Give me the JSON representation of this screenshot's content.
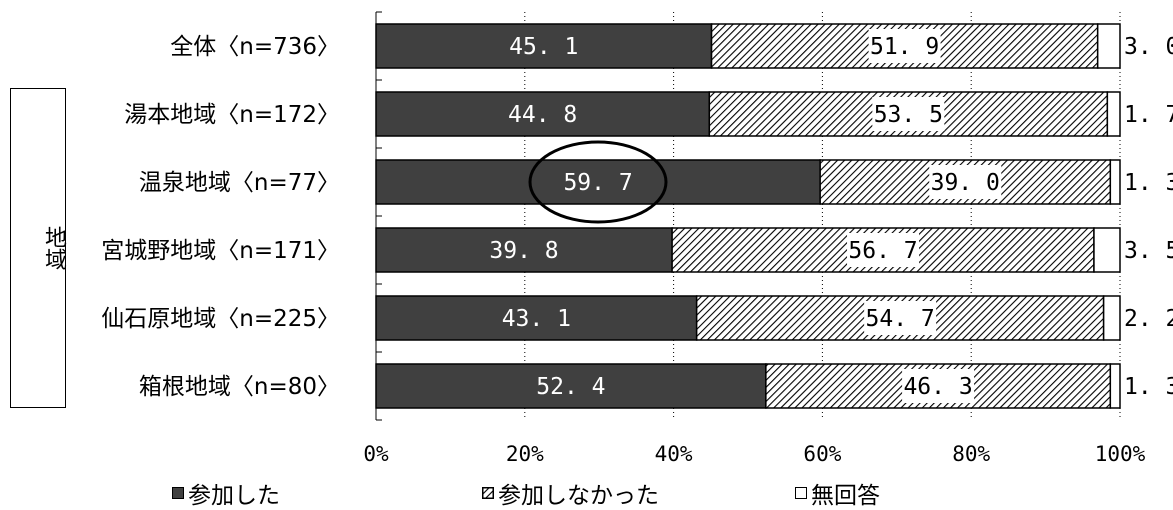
{
  "side_label": "地域",
  "chart_data": {
    "type": "bar",
    "orientation": "horizontal",
    "stacked": true,
    "categories": [
      "全体〈n=736〉",
      "湯本地域〈n=172〉",
      "温泉地域〈n=77〉",
      "宮城野地域〈n=171〉",
      "仙石原地域〈n=225〉",
      "箱根地域〈n=80〉"
    ],
    "series": [
      {
        "name": "参加した",
        "values": [
          45.1,
          44.8,
          59.7,
          39.8,
          43.1,
          52.4
        ],
        "color": "#404040"
      },
      {
        "name": "参加しなかった",
        "values": [
          51.9,
          53.5,
          39.0,
          56.7,
          54.7,
          46.3
        ],
        "color": "hatch"
      },
      {
        "name": "無回答",
        "values": [
          3.0,
          1.7,
          1.3,
          3.5,
          2.2,
          1.3
        ],
        "color": "#ffffff"
      }
    ],
    "value_labels": [
      [
        "45. 1",
        "51. 9",
        "3. 0"
      ],
      [
        "44. 8",
        "53. 5",
        "1. 7"
      ],
      [
        "59. 7",
        "39. 0",
        "1. 3"
      ],
      [
        "39. 8",
        "56. 7",
        "3. 5"
      ],
      [
        "43. 1",
        "54. 7",
        "2. 2"
      ],
      [
        "52. 4",
        "46. 3",
        "1. 3"
      ]
    ],
    "xlim": [
      0,
      100
    ],
    "xticks": [
      "0%",
      "20%",
      "40%",
      "60%",
      "80%",
      "100%"
    ],
    "grid": "vertical-dotted",
    "highlight": {
      "category_index": 2,
      "series_index": 0,
      "shape": "ellipse"
    },
    "legend": {
      "position": "bottom",
      "items": [
        "参加した",
        "参加しなかった",
        "無回答"
      ]
    }
  }
}
